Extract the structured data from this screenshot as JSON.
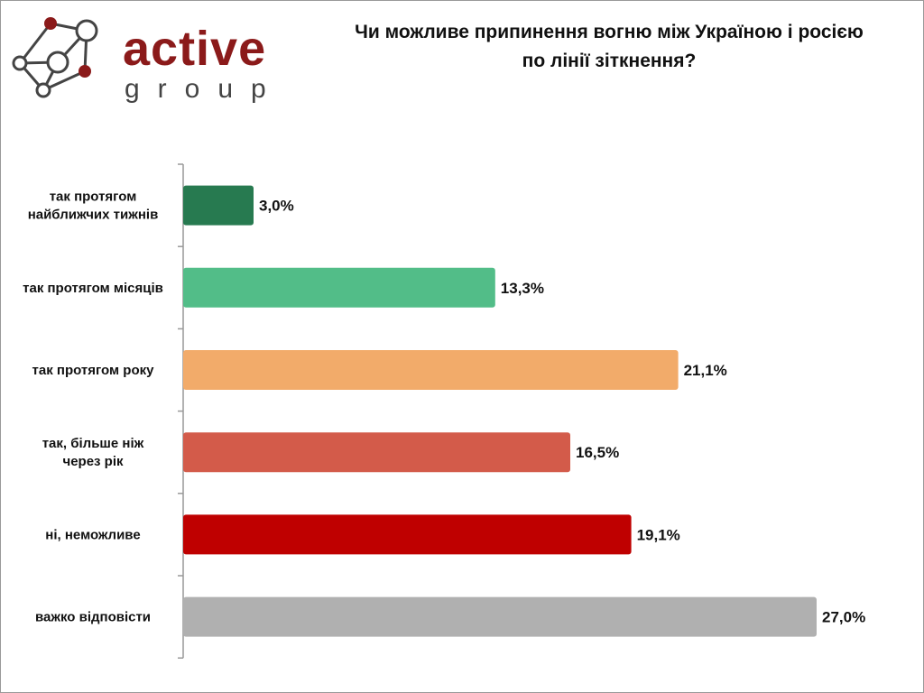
{
  "logo": {
    "word": "active",
    "sub": "group"
  },
  "chart_data": {
    "type": "bar",
    "orientation": "horizontal",
    "title": "Чи можливе припинення вогню між Україною і росією по лінії зіткнення?",
    "title_lines": [
      "Чи можливе припинення вогню між Україною і росією",
      "по лінії зіткнення?"
    ],
    "categories": [
      [
        "так протягом",
        "найближчих тижнів"
      ],
      [
        "так протягом місяців"
      ],
      [
        "так протягом року"
      ],
      [
        "так, більше ніж",
        "через рік"
      ],
      [
        "ні, неможливе"
      ],
      [
        "важко відповісти"
      ]
    ],
    "values": [
      3.0,
      13.3,
      21.1,
      16.5,
      19.1,
      27.0
    ],
    "labels": [
      "3,0%",
      "13,3%",
      "21,1%",
      "16,5%",
      "19,1%",
      "27,0%"
    ],
    "colors": [
      "#277a50",
      "#52bd88",
      "#f2ab6a",
      "#d35b4a",
      "#bf0000",
      "#b0b0b0"
    ],
    "xlim": [
      0,
      27
    ],
    "grid": false,
    "legend": "none"
  }
}
